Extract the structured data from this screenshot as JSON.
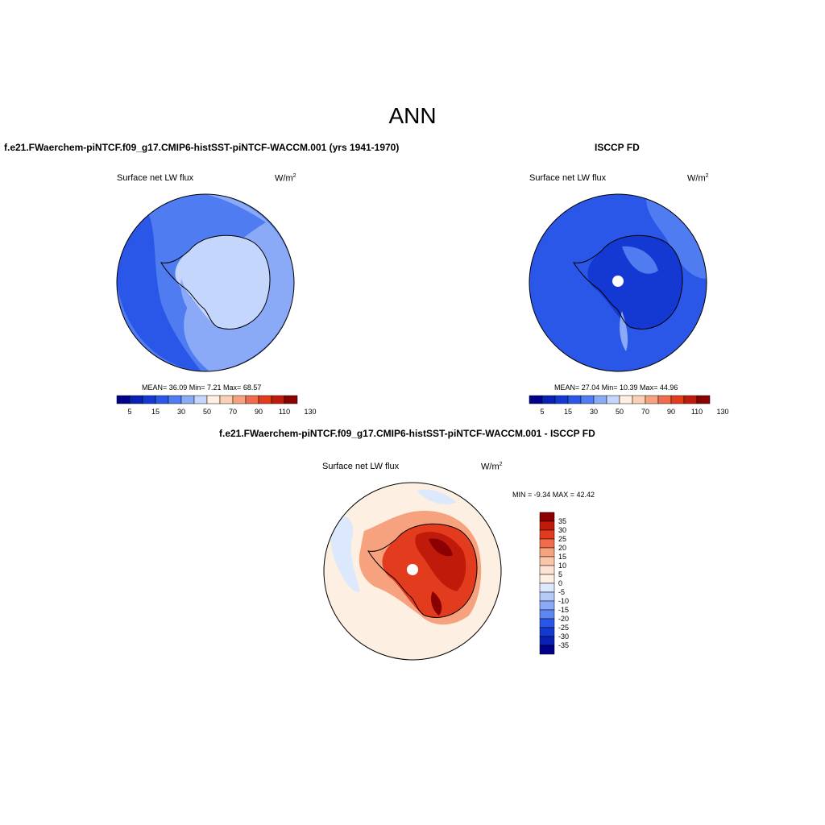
{
  "title": "ANN",
  "panels": [
    {
      "title": "f.e21.FWaerchem-piNTCF.f09_g17.CMIP6-histSST-piNTCF-WACCM.001 (yrs 1941-1970)",
      "variable": "Surface net LW flux",
      "units_base": "W/m",
      "units_exp": "2",
      "stats": "MEAN=  36.09  Min=   7.21  Max=  68.57"
    },
    {
      "title": "ISCCP FD",
      "variable": "Surface net LW flux",
      "units_base": "W/m",
      "units_exp": "2",
      "stats": "MEAN=  27.04  Min=  10.39  Max=  44.96"
    },
    {
      "title": "f.e21.FWaerchem-piNTCF.f09_g17.CMIP6-histSST-piNTCF-WACCM.001 - ISCCP FD",
      "variable": "Surface net LW flux",
      "units_base": "W/m",
      "units_exp": "2",
      "stats": "MIN =  -9.34 MAX =  42.42"
    }
  ],
  "colorbar_abs": {
    "colors": [
      "#00008b",
      "#0a1fb3",
      "#1438d2",
      "#2b57e8",
      "#4f7cf0",
      "#8aa9f7",
      "#c4d6fb",
      "#fdf0e3",
      "#fbd0b3",
      "#f7a27e",
      "#f06c4c",
      "#e23b1e",
      "#c01a0a",
      "#8b0000"
    ],
    "labels": [
      "5",
      "15",
      "30",
      "50",
      "70",
      "90",
      "110",
      "130"
    ]
  },
  "colorbar_diff": {
    "colors": [
      "#8b0000",
      "#c01a0a",
      "#e23b1e",
      "#f06c4c",
      "#f7a27e",
      "#fbc6a8",
      "#fde3d3",
      "#fdf0e3",
      "#dce8fb",
      "#b3c9f7",
      "#8aa9f7",
      "#5d86f0",
      "#2b57e8",
      "#1438d2",
      "#0a1fb3",
      "#00008b"
    ],
    "labels": [
      "35",
      "30",
      "25",
      "20",
      "15",
      "10",
      "5",
      "0",
      "-5",
      "-10",
      "-15",
      "-20",
      "-25",
      "-30",
      "-35"
    ]
  }
}
